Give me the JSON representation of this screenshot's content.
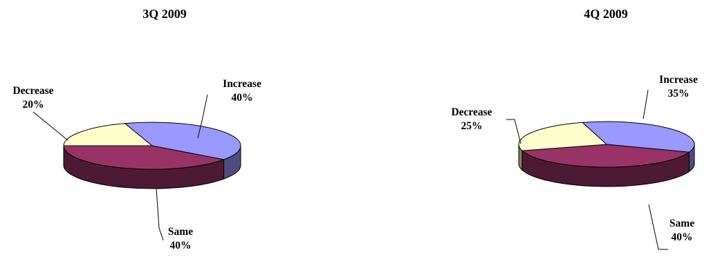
{
  "chart_data": [
    {
      "type": "pie",
      "title": "3Q 2009",
      "slices": [
        {
          "label": "Increase",
          "value": 40,
          "value_text": "40%",
          "color": "#9999FF"
        },
        {
          "label": "Same",
          "value": 40,
          "value_text": "40%",
          "color": "#993366"
        },
        {
          "label": "Decrease",
          "value": 20,
          "value_text": "20%",
          "color": "#FFFFCC"
        }
      ]
    },
    {
      "type": "pie",
      "title": "4Q 2009",
      "slices": [
        {
          "label": "Increase",
          "value": 35,
          "value_text": "35%",
          "color": "#9999FF"
        },
        {
          "label": "Same",
          "value": 40,
          "value_text": "40%",
          "color": "#993366"
        },
        {
          "label": "Decrease",
          "value": 25,
          "value_text": "25%",
          "color": "#FFFFCC"
        }
      ]
    }
  ]
}
